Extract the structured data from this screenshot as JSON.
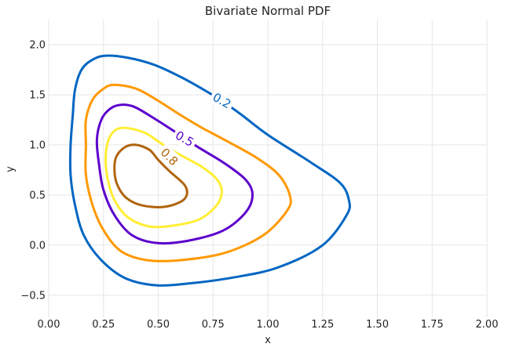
{
  "chart_data": {
    "type": "contour",
    "title": "Bivariate Normal PDF",
    "xlabel": "x",
    "ylabel": "y",
    "xlim": [
      0.0,
      2.0
    ],
    "ylim": [
      -0.72,
      2.25
    ],
    "grid": true,
    "x_ticks": [
      {
        "value": 0.0,
        "label": "0.00"
      },
      {
        "value": 0.25,
        "label": "0.25"
      },
      {
        "value": 0.5,
        "label": "0.50"
      },
      {
        "value": 0.75,
        "label": "0.75"
      },
      {
        "value": 1.0,
        "label": "1.00"
      },
      {
        "value": 1.25,
        "label": "1.25"
      },
      {
        "value": 1.5,
        "label": "1.50"
      },
      {
        "value": 1.75,
        "label": "1.75"
      },
      {
        "value": 2.0,
        "label": "2.00"
      }
    ],
    "y_ticks": [
      {
        "value": -0.5,
        "label": "−0.5"
      },
      {
        "value": 0.0,
        "label": "0.0"
      },
      {
        "value": 0.5,
        "label": "0.5"
      },
      {
        "value": 1.0,
        "label": "1.0"
      },
      {
        "value": 1.5,
        "label": "1.5"
      },
      {
        "value": 2.0,
        "label": "2.0"
      }
    ],
    "contours": [
      {
        "level": 0.2,
        "label": "0.2",
        "color": "#0066c2",
        "label_at": {
          "x": 0.79,
          "y": 1.44,
          "angle_deg": 30
        },
        "points": [
          [
            0.26,
            1.89
          ],
          [
            0.2,
            1.85
          ],
          [
            0.15,
            1.75
          ],
          [
            0.12,
            1.55
          ],
          [
            0.11,
            1.3
          ],
          [
            0.1,
            1.0
          ],
          [
            0.1,
            0.7
          ],
          [
            0.12,
            0.4
          ],
          [
            0.16,
            0.1
          ],
          [
            0.24,
            -0.15
          ],
          [
            0.35,
            -0.33
          ],
          [
            0.49,
            -0.4
          ],
          [
            0.65,
            -0.38
          ],
          [
            0.85,
            -0.32
          ],
          [
            1.05,
            -0.22
          ],
          [
            1.25,
            0.0
          ],
          [
            1.36,
            0.3
          ],
          [
            1.37,
            0.45
          ],
          [
            1.33,
            0.62
          ],
          [
            1.2,
            0.82
          ],
          [
            1.0,
            1.1
          ],
          [
            0.88,
            1.3
          ],
          [
            0.79,
            1.44
          ],
          [
            0.7,
            1.56
          ],
          [
            0.6,
            1.68
          ],
          [
            0.48,
            1.8
          ],
          [
            0.36,
            1.87
          ],
          [
            0.26,
            1.89
          ]
        ]
      },
      {
        "level": "",
        "label": "",
        "color": "#ff9900",
        "label_at": null,
        "points": [
          [
            0.3,
            1.6
          ],
          [
            0.25,
            1.56
          ],
          [
            0.2,
            1.45
          ],
          [
            0.17,
            1.25
          ],
          [
            0.17,
            1.0
          ],
          [
            0.17,
            0.7
          ],
          [
            0.2,
            0.4
          ],
          [
            0.25,
            0.15
          ],
          [
            0.33,
            -0.06
          ],
          [
            0.45,
            -0.15
          ],
          [
            0.6,
            -0.15
          ],
          [
            0.8,
            -0.08
          ],
          [
            0.98,
            0.1
          ],
          [
            1.09,
            0.35
          ],
          [
            1.1,
            0.5
          ],
          [
            1.05,
            0.7
          ],
          [
            0.95,
            0.87
          ],
          [
            0.82,
            1.03
          ],
          [
            0.7,
            1.17
          ],
          [
            0.6,
            1.3
          ],
          [
            0.5,
            1.44
          ],
          [
            0.4,
            1.56
          ],
          [
            0.3,
            1.6
          ]
        ]
      },
      {
        "level": 0.5,
        "label": "0.5",
        "color": "#5c00cc",
        "label_at": {
          "x": 0.62,
          "y": 1.06,
          "angle_deg": 30
        },
        "points": [
          [
            0.33,
            1.4
          ],
          [
            0.28,
            1.36
          ],
          [
            0.24,
            1.25
          ],
          [
            0.22,
            1.05
          ],
          [
            0.23,
            0.8
          ],
          [
            0.25,
            0.55
          ],
          [
            0.3,
            0.3
          ],
          [
            0.38,
            0.1
          ],
          [
            0.5,
            0.02
          ],
          [
            0.65,
            0.05
          ],
          [
            0.8,
            0.15
          ],
          [
            0.9,
            0.33
          ],
          [
            0.93,
            0.5
          ],
          [
            0.9,
            0.65
          ],
          [
            0.8,
            0.82
          ],
          [
            0.68,
            0.98
          ],
          [
            0.57,
            1.14
          ],
          [
            0.47,
            1.28
          ],
          [
            0.39,
            1.38
          ],
          [
            0.33,
            1.4
          ]
        ]
      },
      {
        "level": "",
        "label": "",
        "color": "#ffee33",
        "label_at": null,
        "points": [
          [
            0.35,
            1.17
          ],
          [
            0.3,
            1.14
          ],
          [
            0.27,
            1.03
          ],
          [
            0.26,
            0.85
          ],
          [
            0.27,
            0.65
          ],
          [
            0.3,
            0.45
          ],
          [
            0.36,
            0.28
          ],
          [
            0.45,
            0.19
          ],
          [
            0.55,
            0.19
          ],
          [
            0.68,
            0.25
          ],
          [
            0.76,
            0.38
          ],
          [
            0.79,
            0.52
          ],
          [
            0.77,
            0.65
          ],
          [
            0.7,
            0.78
          ],
          [
            0.6,
            0.9
          ],
          [
            0.51,
            1.02
          ],
          [
            0.44,
            1.12
          ],
          [
            0.35,
            1.17
          ]
        ]
      },
      {
        "level": 0.8,
        "label": "0.8",
        "color": "#b0640c",
        "label_at": {
          "x": 0.55,
          "y": 0.88,
          "angle_deg": 45
        },
        "points": [
          [
            0.4,
            1.0
          ],
          [
            0.35,
            0.98
          ],
          [
            0.31,
            0.89
          ],
          [
            0.3,
            0.77
          ],
          [
            0.31,
            0.62
          ],
          [
            0.35,
            0.48
          ],
          [
            0.42,
            0.4
          ],
          [
            0.52,
            0.38
          ],
          [
            0.6,
            0.43
          ],
          [
            0.63,
            0.5
          ],
          [
            0.62,
            0.6
          ],
          [
            0.55,
            0.74
          ],
          [
            0.5,
            0.85
          ],
          [
            0.46,
            0.95
          ],
          [
            0.4,
            1.0
          ]
        ]
      }
    ]
  }
}
